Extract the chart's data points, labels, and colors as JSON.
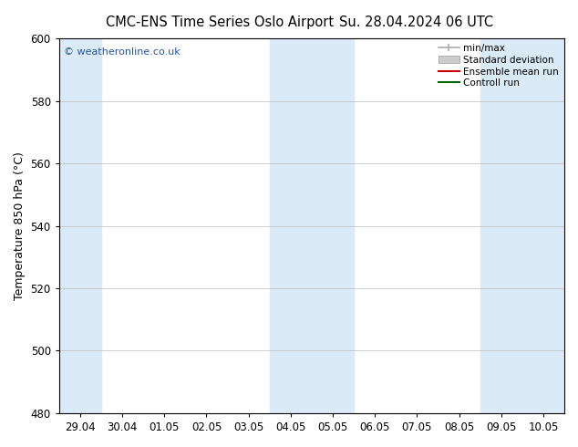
{
  "title_left": "CMC-ENS Time Series Oslo Airport",
  "title_right": "Su. 28.04.2024 06 UTC",
  "ylabel": "Temperature 850 hPa (°C)",
  "ylim": [
    480,
    600
  ],
  "yticks": [
    480,
    500,
    520,
    540,
    560,
    580,
    600
  ],
  "x_tick_labels": [
    "29.04",
    "30.04",
    "01.05",
    "02.05",
    "03.05",
    "04.05",
    "05.05",
    "06.05",
    "07.05",
    "08.05",
    "09.05",
    "10.05"
  ],
  "shaded_band_indices": [
    0,
    5,
    6,
    10,
    11
  ],
  "shade_color": "#daeaf7",
  "watermark": "© weatheronline.co.uk",
  "watermark_color": "#2255aa",
  "legend_labels": [
    "min/max",
    "Standard deviation",
    "Ensemble mean run",
    "Controll run"
  ],
  "legend_line_color": "#aaaaaa",
  "legend_box_color": "#cccccc",
  "legend_red": "#cc0000",
  "legend_green": "#006600",
  "background_color": "#ffffff",
  "title_fontsize": 10.5,
  "ylabel_fontsize": 9,
  "tick_fontsize": 8.5,
  "watermark_fontsize": 8
}
